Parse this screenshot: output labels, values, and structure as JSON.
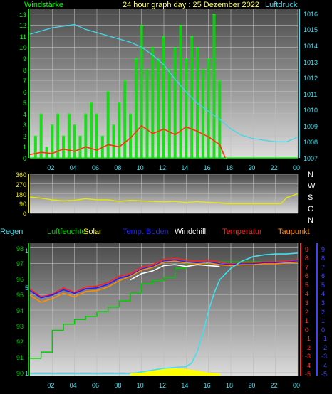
{
  "header": {
    "title": "24 hour graph day : 25 Dezember 2022",
    "left_label": "Windstärke",
    "right_label": "Luftdruck"
  },
  "colors": {
    "wind": "#00e000",
    "gust": "#00ff00",
    "wind_avg": "#ff3300",
    "pressure": "#40d8e8",
    "direction": "#e8e800",
    "humidity": "#00cc00",
    "solar": "#ffff00",
    "soil": "#2020ff",
    "windchill": "#ffffff",
    "temperature": "#ff2020",
    "dewpoint": "#ff8c00",
    "rain": "#40e0f0",
    "left_axis": "#00ff00",
    "right_axis": "#40e0f0",
    "temp_axis": "#ff3030",
    "dew_axis": "#4040ff"
  },
  "chart_data": [
    {
      "id": "wind_pressure",
      "type": "line",
      "x_ticks": [
        "02",
        "04",
        "06",
        "08",
        "10",
        "12",
        "14",
        "16",
        "18",
        "20",
        "22",
        "00"
      ],
      "left_ticks": [
        "0",
        "1",
        "2",
        "3",
        "4",
        "5",
        "6",
        "7",
        "8",
        "9",
        "10",
        "11",
        "12",
        "13"
      ],
      "right_ticks": [
        "1007",
        "1008",
        "1009",
        "1010",
        "1011",
        "1012",
        "1013",
        "1014",
        "1015",
        "1016"
      ],
      "xlim": [
        0,
        24
      ],
      "left_ylim": [
        0,
        13.5
      ],
      "right_ylim": [
        1007,
        1016.3
      ],
      "series": [
        {
          "name": "Windstärke",
          "axis": "left",
          "style": "bars",
          "x": [
            0.5,
            1.0,
            1.5,
            2.0,
            2.5,
            3.0,
            3.5,
            4.0,
            4.5,
            5.0,
            5.5,
            6.0,
            6.5,
            7.0,
            7.5,
            8.0,
            8.5,
            9.0,
            9.5,
            10.0,
            10.5,
            11.0,
            11.5,
            12.0,
            12.5,
            13.0,
            13.5,
            14.0,
            14.5,
            15.0,
            15.5,
            16.0,
            16.5,
            17.0,
            17.5
          ],
          "y": [
            2,
            4,
            1,
            3,
            4,
            2,
            4,
            3,
            2,
            4,
            5,
            4,
            2,
            6,
            3,
            5,
            7,
            4,
            9,
            12,
            8,
            10,
            9,
            11,
            8,
            10,
            12,
            9,
            11,
            10,
            8,
            9,
            13,
            7,
            0
          ]
        },
        {
          "name": "",
          "axis": "left",
          "style": "line",
          "x": [
            0,
            1,
            2,
            3,
            4,
            5,
            6,
            7,
            8,
            9,
            10,
            11,
            12,
            13,
            14,
            15,
            16,
            17,
            17.5
          ],
          "y": [
            0.3,
            0.5,
            0.4,
            0.8,
            0.6,
            1.0,
            0.7,
            1.2,
            1.0,
            1.8,
            2.9,
            2.2,
            2.6,
            2.1,
            2.8,
            2.4,
            1.9,
            1.2,
            0.0
          ]
        },
        {
          "name": "Luftdruck",
          "axis": "right",
          "style": "line",
          "x": [
            0,
            1,
            2,
            3,
            4,
            5,
            6,
            7,
            8,
            9,
            10,
            11,
            12,
            13,
            14,
            15,
            16,
            17,
            18,
            19,
            20,
            21,
            22,
            23,
            24
          ],
          "y": [
            1014.7,
            1014.9,
            1015.1,
            1015.2,
            1015.3,
            1015.0,
            1014.8,
            1014.6,
            1014.4,
            1014.2,
            1013.9,
            1013.4,
            1012.8,
            1011.9,
            1011.1,
            1010.4,
            1009.9,
            1009.4,
            1008.8,
            1008.4,
            1008.2,
            1008.1,
            1008.0,
            1008.0,
            1008.3
          ]
        }
      ]
    },
    {
      "id": "wind_direction",
      "type": "line",
      "left_ticks": [
        "0",
        "90",
        "180",
        "270",
        "360"
      ],
      "right_labels": [
        "N",
        "W",
        "S",
        "O",
        "N"
      ],
      "xlim": [
        0,
        24
      ],
      "ylim": [
        0,
        360
      ],
      "series": [
        {
          "name": "",
          "x": [
            0,
            1,
            2,
            3,
            4,
            5,
            6,
            7,
            8,
            9,
            10,
            11,
            12,
            13,
            14,
            15,
            16,
            17,
            17.5,
            22.5,
            23,
            24
          ],
          "y": [
            150,
            140,
            125,
            115,
            120,
            135,
            125,
            125,
            110,
            120,
            115,
            110,
            105,
            110,
            100,
            108,
            102,
            98,
            90,
            90,
            145,
            180
          ]
        }
      ]
    },
    {
      "id": "temperature_humidity",
      "type": "line",
      "header_labels": [
        "Regen",
        "Luftfeuchte",
        "Solar",
        "Temp. Boden",
        "Windchill",
        "Temperatur",
        "Taupunkt"
      ],
      "x_ticks": [
        "02",
        "04",
        "06",
        "08",
        "10",
        "12",
        "14",
        "16",
        "18",
        "20",
        "22",
        "00"
      ],
      "left_ticks": [
        "90",
        "91",
        "92",
        "93",
        "94",
        "95",
        "96",
        "97",
        "98"
      ],
      "rain_ticks": [
        "1",
        "5",
        "1"
      ],
      "temp_ticks": [
        "9",
        "8",
        "7",
        "6",
        "5",
        "4",
        "3",
        "2",
        "1",
        "0",
        "-1",
        "-2",
        "-3",
        "-4",
        "-5"
      ],
      "dew_ticks": [
        "9",
        "8",
        "7",
        "6",
        "5",
        "4",
        "3",
        "2",
        "1",
        "0",
        "-1",
        "-2",
        "-3",
        "-4",
        "-5"
      ],
      "xlim": [
        0,
        24
      ],
      "left_ylim": [
        89.8,
        98.3
      ],
      "temp_ylim": [
        -5.2,
        9.6
      ],
      "series": [
        {
          "name": "Luftfeuchte",
          "axis": "left",
          "style": "step",
          "x": [
            0,
            1,
            2,
            3,
            4,
            5,
            6,
            7,
            8,
            9,
            10,
            11,
            12,
            13,
            14,
            15,
            16,
            17,
            18,
            19,
            20,
            21,
            22,
            23,
            24
          ],
          "y": [
            90.9,
            91.3,
            92.7,
            93.1,
            93.4,
            93.6,
            93.9,
            94.2,
            94.6,
            95.1,
            95.7,
            95.9,
            96.1,
            96.7,
            97.0,
            97.0,
            97.0,
            97.1,
            97.1,
            97.1,
            97.1,
            97.1,
            97.1,
            97.1,
            97.1
          ]
        },
        {
          "name": "Temperatur",
          "axis": "temp",
          "style": "line",
          "x": [
            0,
            1,
            2,
            3,
            4,
            5,
            6,
            7,
            8,
            9,
            10,
            11,
            12,
            13,
            14,
            15,
            16,
            17,
            18,
            19,
            20,
            21,
            22,
            23,
            24
          ],
          "y": [
            4.5,
            3.6,
            3.9,
            4.6,
            4.1,
            4.7,
            4.8,
            5.2,
            5.9,
            6.2,
            6.9,
            7.2,
            7.8,
            7.9,
            7.7,
            7.6,
            7.7,
            7.5,
            7.3,
            7.4,
            7.4,
            7.5,
            7.5,
            7.6,
            7.7
          ]
        },
        {
          "name": "Temp. Boden",
          "axis": "temp",
          "style": "line",
          "x": [
            0,
            1,
            2,
            3,
            4,
            5,
            6,
            7,
            8,
            9,
            10,
            11,
            12,
            13,
            14,
            15,
            16,
            17,
            18,
            19,
            20,
            21,
            22,
            23,
            24
          ],
          "y": [
            4.3,
            3.5,
            3.8,
            4.4,
            4.0,
            4.5,
            4.6,
            5.0,
            5.7,
            6.0,
            6.7,
            7.0,
            7.6,
            7.7,
            7.5,
            7.4,
            7.5,
            7.3,
            7.2,
            7.3,
            7.3,
            7.4,
            7.4,
            7.5,
            7.6
          ]
        },
        {
          "name": "Taupunkt",
          "axis": "temp",
          "style": "line",
          "x": [
            0,
            1,
            2,
            3,
            4,
            5,
            6,
            7,
            8,
            9,
            10,
            11,
            12,
            13,
            14,
            15,
            16,
            17,
            18,
            19,
            20,
            21,
            22,
            23,
            24
          ],
          "y": [
            3.8,
            3.0,
            3.4,
            4.0,
            3.6,
            4.2,
            4.3,
            4.7,
            5.4,
            5.9,
            6.6,
            6.9,
            7.5,
            7.6,
            7.4,
            7.3,
            7.4,
            7.2,
            7.1,
            7.2,
            7.2,
            7.3,
            7.3,
            7.4,
            7.5
          ]
        },
        {
          "name": "Windchill",
          "axis": "temp",
          "style": "line",
          "x": [
            9,
            10,
            11,
            12,
            13,
            14,
            15,
            16,
            17
          ],
          "y": [
            5.5,
            6.2,
            6.5,
            7.1,
            7.2,
            7.0,
            7.2,
            7.1,
            7.0
          ]
        },
        {
          "name": "Regen",
          "axis": "temp",
          "style": "line",
          "x": [
            0,
            8,
            9,
            10,
            11,
            12,
            13,
            14,
            14.5,
            15,
            15.5,
            16,
            16.5,
            17,
            18,
            19,
            20,
            21,
            22,
            23,
            24
          ],
          "y": [
            -5,
            -5,
            -5,
            -4.8,
            -4.6,
            -4.4,
            -4.3,
            -4.2,
            -3.8,
            -2.5,
            -0.5,
            2.0,
            4.0,
            5.5,
            6.8,
            7.6,
            8.1,
            8.3,
            8.4,
            8.4,
            8.5
          ]
        },
        {
          "name": "Solar",
          "axis": "temp",
          "style": "area",
          "x": [
            9,
            10,
            11,
            12,
            13,
            14,
            15,
            16,
            17
          ],
          "y": [
            -5,
            -4.9,
            -4.7,
            -4.5,
            -4.45,
            -4.5,
            -4.7,
            -4.9,
            -5
          ]
        }
      ]
    }
  ]
}
